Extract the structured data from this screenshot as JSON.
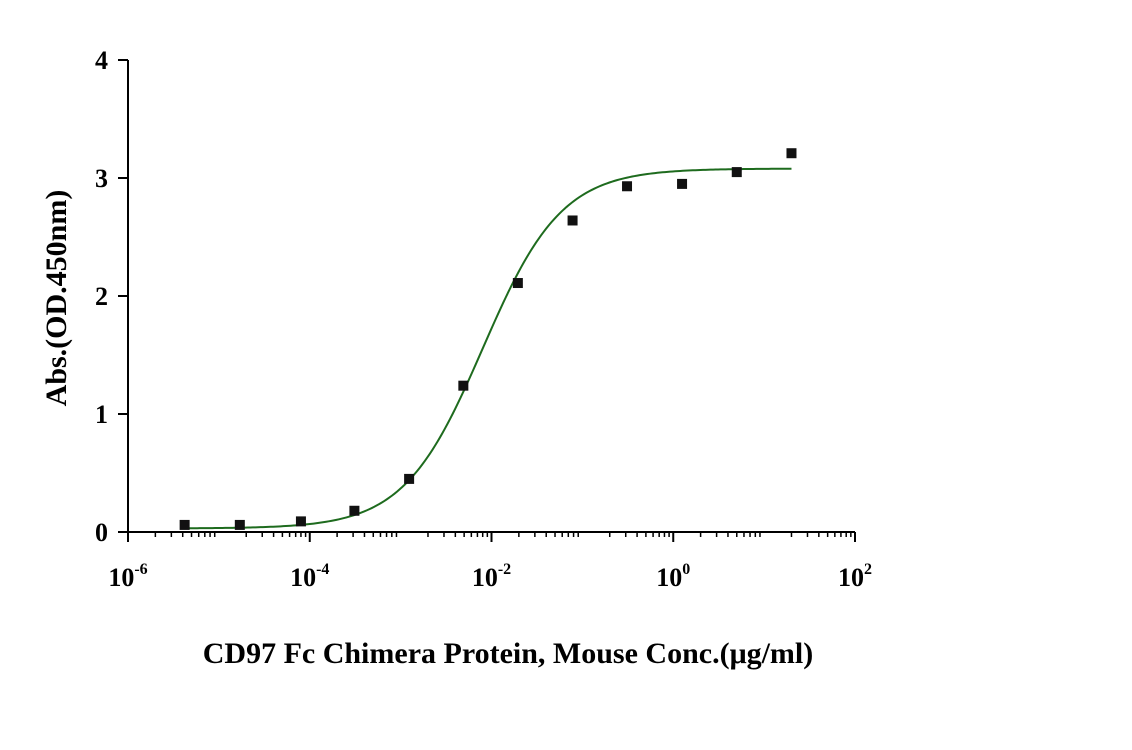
{
  "chart_data": {
    "type": "scatter",
    "xlabel": "CD97 Fc Chimera Protein, Mouse Conc.(μg/ml)",
    "ylabel": "Abs.(OD.450nm)",
    "x_scale": "log",
    "xlim": [
      1e-06,
      100
    ],
    "ylim": [
      0,
      4
    ],
    "x_ticks": [
      {
        "base": "10",
        "exp": "-6",
        "value": 1e-06
      },
      {
        "base": "10",
        "exp": "-4",
        "value": 0.0001
      },
      {
        "base": "10",
        "exp": "-2",
        "value": 0.01
      },
      {
        "base": "10",
        "exp": "0",
        "value": 1
      },
      {
        "base": "10",
        "exp": "2",
        "value": 100
      }
    ],
    "y_ticks": [
      {
        "label": "0",
        "value": 0
      },
      {
        "label": "1",
        "value": 1
      },
      {
        "label": "2",
        "value": 2
      },
      {
        "label": "3",
        "value": 3
      },
      {
        "label": "4",
        "value": 4
      }
    ],
    "grid": false,
    "points": [
      {
        "x": 4.2e-06,
        "y": 0.06
      },
      {
        "x": 1.7e-05,
        "y": 0.06
      },
      {
        "x": 8e-05,
        "y": 0.09
      },
      {
        "x": 0.00031,
        "y": 0.18
      },
      {
        "x": 0.00124,
        "y": 0.45
      },
      {
        "x": 0.0049,
        "y": 1.24
      },
      {
        "x": 0.0195,
        "y": 2.11
      },
      {
        "x": 0.078,
        "y": 2.64
      },
      {
        "x": 0.31,
        "y": 2.93
      },
      {
        "x": 1.25,
        "y": 2.95
      },
      {
        "x": 5.0,
        "y": 3.05
      },
      {
        "x": 20.0,
        "y": 3.21
      }
    ],
    "fit_curve": {
      "model": "4PL",
      "bottom": 0.03,
      "top": 3.08,
      "ec50": 0.008,
      "hill": 1.0,
      "x_range": [
        4.2e-06,
        20.0
      ]
    },
    "colors": {
      "points": "#111111",
      "curve": "#1e6b1e",
      "axis": "#000000"
    }
  }
}
